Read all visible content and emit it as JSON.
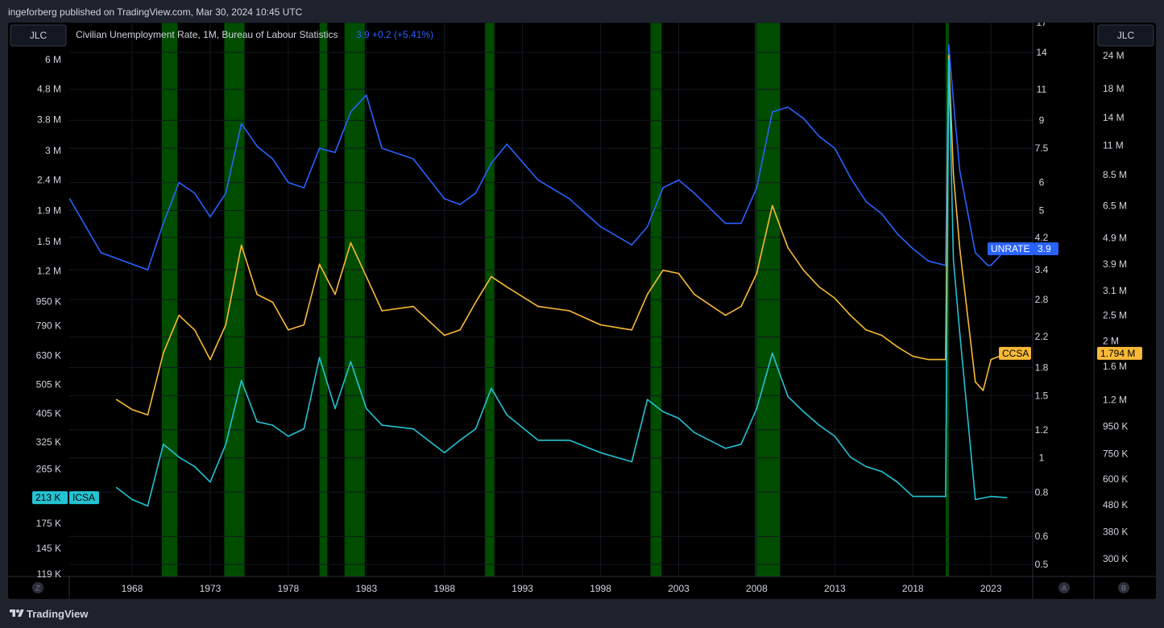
{
  "header": {
    "published_text": "ingeforberg published on TradingView.com, Mar 30, 2024 10:45 UTC"
  },
  "footer": {
    "brand": "TradingView"
  },
  "legend": {
    "title": "Civilian Unemployment Rate, 1M, Bureau of Labour Statistics",
    "last_value": "3.9",
    "change": "+0.2 (+5.41%)"
  },
  "buttons": {
    "left_symbol": "JLC",
    "right_symbol": "JLC",
    "axis_z": "Z",
    "axis_a": "A",
    "axis_b": "B"
  },
  "colors": {
    "background": "#000000",
    "frame": "#1e222d",
    "recession": "#004d00",
    "unrate": "#2962ff",
    "ccsa": "#f9b937",
    "icsa": "#25c2d3"
  },
  "axes": {
    "x_ticks": [
      "1968",
      "1973",
      "1978",
      "1983",
      "1988",
      "1993",
      "1998",
      "2003",
      "2008",
      "2013",
      "2018",
      "2023"
    ],
    "left_ticks": [
      "6 M",
      "4.8 M",
      "3.8 M",
      "3 M",
      "2.4 M",
      "1.9 M",
      "1.5 M",
      "1.2 M",
      "950 K",
      "790 K",
      "630 K",
      "505 K",
      "405 K",
      "325 K",
      "265 K",
      "175 K",
      "145 K",
      "119 K"
    ],
    "middle_ticks": [
      "17",
      "14",
      "11",
      "9",
      "7.5",
      "6",
      "5",
      "4.2",
      "3.4",
      "2.8",
      "2.2",
      "1.8",
      "1.5",
      "1.2",
      "1",
      "0.8",
      "0.6",
      "0.5"
    ],
    "right_ticks": [
      "24 M",
      "18 M",
      "14 M",
      "11 M",
      "8.5 M",
      "6.5 M",
      "4.9 M",
      "3.9 M",
      "3.1 M",
      "2.5 M",
      "2 M",
      "1.6 M",
      "1.2 M",
      "950 K",
      "750 K",
      "600 K",
      "480 K",
      "380 K",
      "300 K"
    ]
  },
  "badges": {
    "unrate": {
      "name": "UNRATE",
      "value": "3.9"
    },
    "ccsa": {
      "name": "CCSA",
      "value": "1.794 M"
    },
    "icsa": {
      "name": "ICSA",
      "value": "213 K"
    }
  },
  "chart_data": {
    "type": "line",
    "title": "Civilian Unemployment Rate, 1M, Bureau of Labour Statistics",
    "x_range": [
      1964,
      2025
    ],
    "log_scale": true,
    "grid": true,
    "recessions": [
      [
        1969.9,
        1970.9
      ],
      [
        1973.9,
        1975.2
      ],
      [
        1980.0,
        1980.5
      ],
      [
        1981.6,
        1982.9
      ],
      [
        1990.6,
        1991.2
      ],
      [
        2001.2,
        2001.9
      ],
      [
        2007.9,
        2009.5
      ],
      [
        2020.1,
        2020.3
      ]
    ],
    "series": [
      {
        "name": "UNRATE",
        "axis": "middle",
        "points": [
          [
            1964,
            5.4
          ],
          [
            1966,
            3.8
          ],
          [
            1969,
            3.4
          ],
          [
            1970,
            4.6
          ],
          [
            1971,
            6.0
          ],
          [
            1972,
            5.6
          ],
          [
            1973,
            4.8
          ],
          [
            1974,
            5.6
          ],
          [
            1975,
            8.8
          ],
          [
            1976,
            7.6
          ],
          [
            1977,
            7.0
          ],
          [
            1978,
            6.0
          ],
          [
            1979,
            5.8
          ],
          [
            1980,
            7.5
          ],
          [
            1981,
            7.3
          ],
          [
            1982,
            9.5
          ],
          [
            1983,
            10.6
          ],
          [
            1984,
            7.5
          ],
          [
            1986,
            7.0
          ],
          [
            1988,
            5.4
          ],
          [
            1989,
            5.2
          ],
          [
            1990,
            5.6
          ],
          [
            1991,
            6.8
          ],
          [
            1992,
            7.7
          ],
          [
            1994,
            6.1
          ],
          [
            1996,
            5.4
          ],
          [
            1998,
            4.5
          ],
          [
            2000,
            4.0
          ],
          [
            2001,
            4.5
          ],
          [
            2002,
            5.8
          ],
          [
            2003,
            6.1
          ],
          [
            2004,
            5.6
          ],
          [
            2006,
            4.6
          ],
          [
            2007,
            4.6
          ],
          [
            2008,
            5.8
          ],
          [
            2009,
            9.5
          ],
          [
            2010,
            9.8
          ],
          [
            2011,
            9.1
          ],
          [
            2012,
            8.1
          ],
          [
            2013,
            7.5
          ],
          [
            2014,
            6.2
          ],
          [
            2015,
            5.3
          ],
          [
            2016,
            4.9
          ],
          [
            2017,
            4.3
          ],
          [
            2018,
            3.9
          ],
          [
            2019,
            3.6
          ],
          [
            2020.1,
            3.5
          ],
          [
            2020.3,
            14.7
          ],
          [
            2020.6,
            10.2
          ],
          [
            2021,
            6.5
          ],
          [
            2022,
            3.8
          ],
          [
            2022.8,
            3.5
          ],
          [
            2023,
            3.5
          ],
          [
            2024,
            3.9
          ]
        ]
      },
      {
        "name": "CCSA",
        "axis": "right",
        "points": [
          [
            1967,
            1.2
          ],
          [
            1968,
            1.1
          ],
          [
            1969,
            1.05
          ],
          [
            1970,
            1.8
          ],
          [
            1971,
            2.5
          ],
          [
            1972,
            2.2
          ],
          [
            1973,
            1.7
          ],
          [
            1974,
            2.3
          ],
          [
            1975,
            4.6
          ],
          [
            1976,
            3.0
          ],
          [
            1977,
            2.8
          ],
          [
            1978,
            2.2
          ],
          [
            1979,
            2.3
          ],
          [
            1980,
            3.9
          ],
          [
            1981,
            3.0
          ],
          [
            1982,
            4.7
          ],
          [
            1983,
            3.5
          ],
          [
            1984,
            2.6
          ],
          [
            1986,
            2.7
          ],
          [
            1988,
            2.1
          ],
          [
            1989,
            2.2
          ],
          [
            1990,
            2.8
          ],
          [
            1991,
            3.5
          ],
          [
            1992,
            3.2
          ],
          [
            1994,
            2.7
          ],
          [
            1996,
            2.6
          ],
          [
            1998,
            2.3
          ],
          [
            2000,
            2.2
          ],
          [
            2001,
            3.0
          ],
          [
            2002,
            3.7
          ],
          [
            2003,
            3.6
          ],
          [
            2004,
            3.0
          ],
          [
            2006,
            2.5
          ],
          [
            2007,
            2.7
          ],
          [
            2008,
            3.6
          ],
          [
            2009,
            6.5
          ],
          [
            2010,
            4.5
          ],
          [
            2011,
            3.7
          ],
          [
            2012,
            3.2
          ],
          [
            2013,
            2.9
          ],
          [
            2014,
            2.5
          ],
          [
            2015,
            2.2
          ],
          [
            2016,
            2.1
          ],
          [
            2017,
            1.9
          ],
          [
            2018,
            1.75
          ],
          [
            2019,
            1.7
          ],
          [
            2020.1,
            1.7
          ],
          [
            2020.3,
            24.0
          ],
          [
            2020.6,
            8.5
          ],
          [
            2021,
            4.5
          ],
          [
            2022,
            1.4
          ],
          [
            2022.5,
            1.3
          ],
          [
            2023,
            1.7
          ],
          [
            2024,
            1.794
          ]
        ]
      },
      {
        "name": "ICSA",
        "axis": "left",
        "points": [
          [
            1967,
            230
          ],
          [
            1968,
            210
          ],
          [
            1969,
            200
          ],
          [
            1970,
            320
          ],
          [
            1971,
            290
          ],
          [
            1972,
            270
          ],
          [
            1973,
            240
          ],
          [
            1974,
            320
          ],
          [
            1975,
            520
          ],
          [
            1976,
            380
          ],
          [
            1977,
            370
          ],
          [
            1978,
            340
          ],
          [
            1979,
            360
          ],
          [
            1980,
            620
          ],
          [
            1981,
            420
          ],
          [
            1982,
            600
          ],
          [
            1983,
            420
          ],
          [
            1984,
            370
          ],
          [
            1986,
            360
          ],
          [
            1988,
            300
          ],
          [
            1989,
            330
          ],
          [
            1990,
            360
          ],
          [
            1991,
            490
          ],
          [
            1992,
            400
          ],
          [
            1994,
            330
          ],
          [
            1996,
            330
          ],
          [
            1998,
            300
          ],
          [
            2000,
            280
          ],
          [
            2001,
            450
          ],
          [
            2002,
            410
          ],
          [
            2003,
            390
          ],
          [
            2004,
            350
          ],
          [
            2006,
            310
          ],
          [
            2007,
            320
          ],
          [
            2008,
            420
          ],
          [
            2009,
            640
          ],
          [
            2010,
            460
          ],
          [
            2011,
            410
          ],
          [
            2012,
            370
          ],
          [
            2013,
            340
          ],
          [
            2014,
            290
          ],
          [
            2015,
            270
          ],
          [
            2016,
            260
          ],
          [
            2017,
            240
          ],
          [
            2018,
            215
          ],
          [
            2019,
            215
          ],
          [
            2020.1,
            215
          ],
          [
            2020.3,
            6000
          ],
          [
            2020.6,
            1300
          ],
          [
            2021,
            750
          ],
          [
            2022,
            210
          ],
          [
            2023,
            215
          ],
          [
            2024,
            213
          ]
        ]
      }
    ]
  }
}
